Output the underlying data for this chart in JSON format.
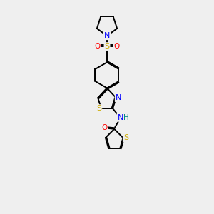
{
  "background_color": "#efefef",
  "atom_colors": {
    "S": "#ccaa00",
    "N": "#0000ff",
    "O": "#ff0000",
    "C": "#000000",
    "H": "#008888"
  },
  "bond_color": "#000000",
  "bond_width": 1.4,
  "fig_width": 3.0,
  "fig_height": 3.0,
  "dpi": 100
}
